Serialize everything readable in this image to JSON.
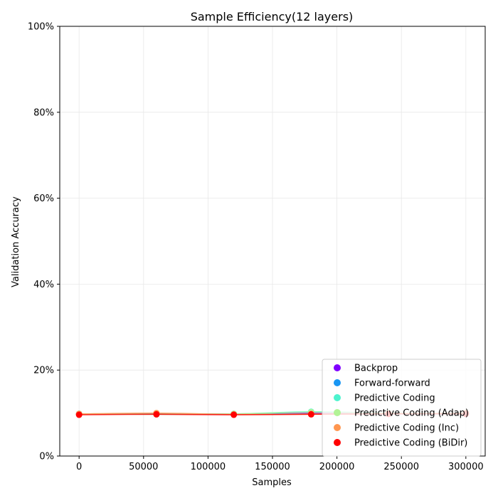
{
  "chart_data": {
    "type": "scatter",
    "title": "Sample Efficiency(12 layers)",
    "xlabel": "Samples",
    "ylabel": "Validation Accuracy",
    "xlim": [
      -15000,
      315000
    ],
    "ylim": [
      0,
      1
    ],
    "x_ticks": [
      0,
      50000,
      100000,
      150000,
      200000,
      250000,
      300000
    ],
    "x_tick_labels": [
      "0",
      "50000",
      "100000",
      "150000",
      "200000",
      "250000",
      "300000"
    ],
    "y_ticks": [
      0,
      0.2,
      0.4,
      0.6,
      0.8,
      1.0
    ],
    "y_tick_labels": [
      "0%",
      "20%",
      "40%",
      "60%",
      "80%",
      "100%"
    ],
    "grid": true,
    "legend_position": "lower-right",
    "series": [
      {
        "name": "Backprop",
        "color": "#8000ff",
        "x": [
          0,
          60000,
          120000,
          180000,
          240000,
          300000
        ],
        "y": [
          0.098,
          0.098,
          0.097,
          0.1,
          0.099,
          0.098
        ]
      },
      {
        "name": "Forward-forward",
        "color": "#1996f3",
        "x": [
          0,
          60000,
          120000,
          180000,
          240000,
          300000
        ],
        "y": [
          0.098,
          0.098,
          0.098,
          0.098,
          0.098,
          0.098
        ]
      },
      {
        "name": "Predictive Coding",
        "color": "#4df3ce",
        "x": [
          0,
          60000,
          120000,
          180000,
          240000,
          300000
        ],
        "y": [
          0.098,
          0.097,
          0.098,
          0.103,
          0.1,
          0.099
        ]
      },
      {
        "name": "Predictive Coding (Adap)",
        "color": "#b2f396",
        "x": [
          0,
          60000,
          120000,
          180000,
          240000,
          300000
        ],
        "y": [
          0.098,
          0.097,
          0.098,
          0.102,
          0.1,
          0.099
        ]
      },
      {
        "name": "Predictive Coding (Inc)",
        "color": "#ff964f",
        "x": [
          0,
          60000,
          120000,
          180000,
          240000,
          300000
        ],
        "y": [
          0.098,
          0.1,
          0.097,
          0.098,
          0.099,
          0.1
        ]
      },
      {
        "name": "Predictive Coding (BiDir)",
        "color": "#ff0000",
        "x": [
          0,
          60000,
          120000,
          180000,
          240000,
          300000
        ],
        "y": [
          0.096,
          0.097,
          0.096,
          0.097,
          0.098,
          0.098
        ]
      }
    ]
  }
}
